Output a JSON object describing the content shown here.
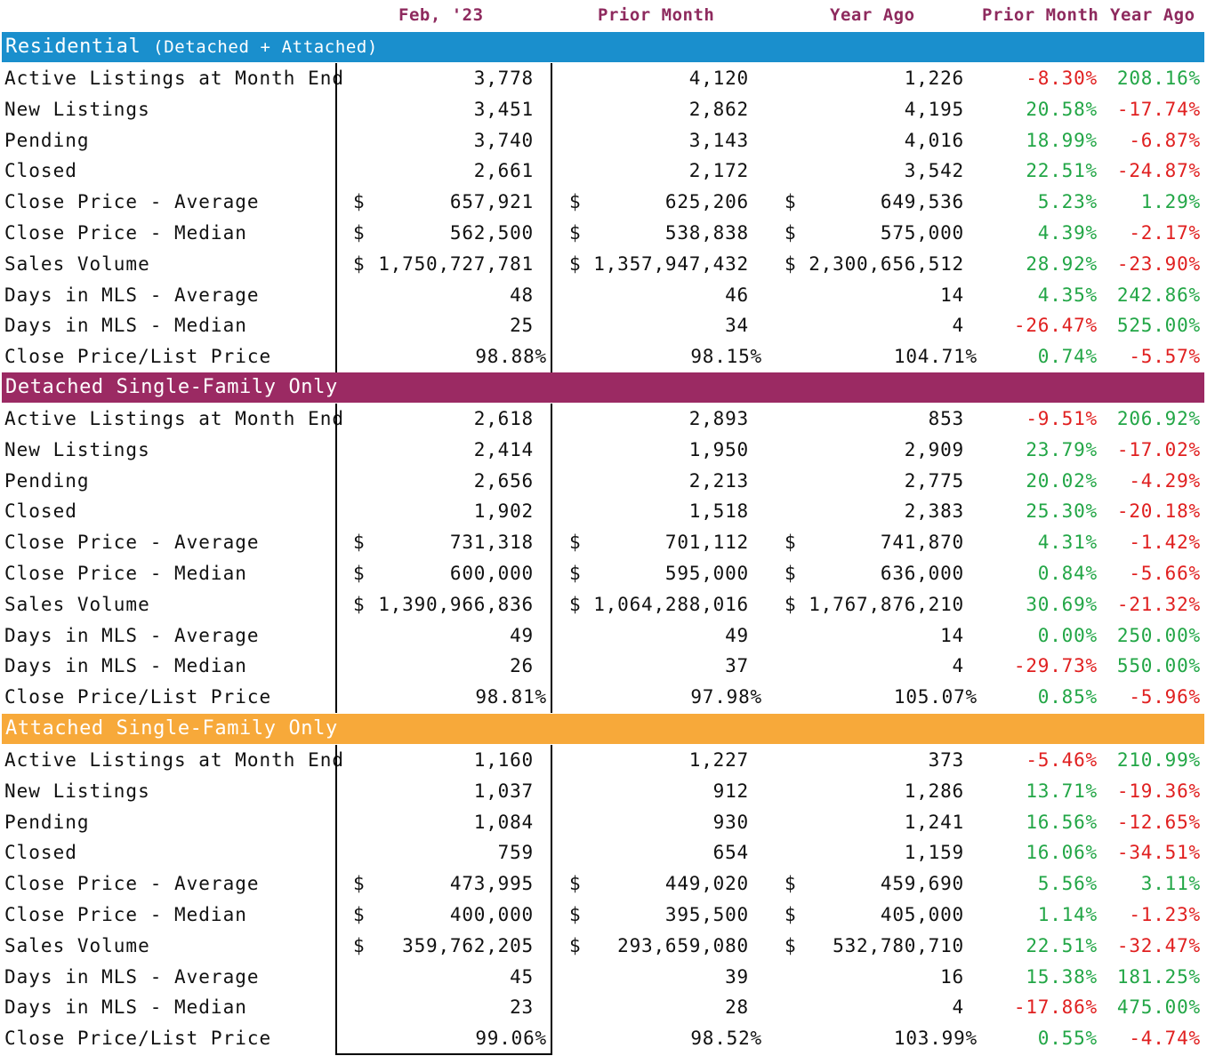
{
  "headers": [
    "Feb, '23",
    "Prior Month",
    "Year Ago",
    "Prior Month",
    "Year Ago"
  ],
  "colors": {
    "residential": "#1a8fcd",
    "detached": "#9b2a63",
    "attached": "#f7a93a",
    "positive": "#22a646",
    "negative": "#e02020",
    "header_text": "#8e2a5e"
  },
  "sections": [
    {
      "title": "Residential",
      "subtitle": "(Detached + Attached)",
      "color_key": "residential",
      "rows": [
        {
          "label": "Active Listings at Month End",
          "cur": "3,778",
          "prior": "4,120",
          "year": "1,226",
          "pm": "-8.30%",
          "ya": "208.16%"
        },
        {
          "label": "New Listings",
          "cur": "3,451",
          "prior": "2,862",
          "year": "4,195",
          "pm": "20.58%",
          "ya": "-17.74%"
        },
        {
          "label": "Pending",
          "cur": "3,740",
          "prior": "3,143",
          "year": "4,016",
          "pm": "18.99%",
          "ya": "-6.87%"
        },
        {
          "label": "Closed",
          "cur": "2,661",
          "prior": "2,172",
          "year": "3,542",
          "pm": "22.51%",
          "ya": "-24.87%"
        },
        {
          "label": "Close Price - Average",
          "dollar": "wide",
          "cur": "657,921",
          "prior": "625,206",
          "year": "649,536",
          "pm": "5.23%",
          "ya": "1.29%"
        },
        {
          "label": "Close Price - Median",
          "dollar": "wide",
          "cur": "562,500",
          "prior": "538,838",
          "year": "575,000",
          "pm": "4.39%",
          "ya": "-2.17%"
        },
        {
          "label": "Sales Volume",
          "dollar": "tight",
          "cur": "1,750,727,781",
          "prior": "1,357,947,432",
          "year": "2,300,656,512",
          "pm": "28.92%",
          "ya": "-23.90%"
        },
        {
          "label": "Days in MLS - Average",
          "cur": "48",
          "prior": "46",
          "year": "14",
          "pm": "4.35%",
          "ya": "242.86%"
        },
        {
          "label": "Days in MLS - Median",
          "cur": "25",
          "prior": "34",
          "year": "4",
          "pm": "-26.47%",
          "ya": "525.00%"
        },
        {
          "label": "Close Price/List Price",
          "pct": true,
          "cur": "98.88%",
          "prior": "98.15%",
          "year": "104.71%",
          "pm": "0.74%",
          "ya": "-5.57%"
        }
      ]
    },
    {
      "title": "Detached Single-Family Only",
      "subtitle": "",
      "color_key": "detached",
      "rows": [
        {
          "label": "Active Listings at Month End",
          "cur": "2,618",
          "prior": "2,893",
          "year": "853",
          "pm": "-9.51%",
          "ya": "206.92%"
        },
        {
          "label": "New Listings",
          "cur": "2,414",
          "prior": "1,950",
          "year": "2,909",
          "pm": "23.79%",
          "ya": "-17.02%"
        },
        {
          "label": "Pending",
          "cur": "2,656",
          "prior": "2,213",
          "year": "2,775",
          "pm": "20.02%",
          "ya": "-4.29%"
        },
        {
          "label": "Closed",
          "cur": "1,902",
          "prior": "1,518",
          "year": "2,383",
          "pm": "25.30%",
          "ya": "-20.18%"
        },
        {
          "label": "Close Price - Average",
          "dollar": "wide",
          "cur": "731,318",
          "prior": "701,112",
          "year": "741,870",
          "pm": "4.31%",
          "ya": "-1.42%"
        },
        {
          "label": "Close Price - Median",
          "dollar": "wide",
          "cur": "600,000",
          "prior": "595,000",
          "year": "636,000",
          "pm": "0.84%",
          "ya": "-5.66%"
        },
        {
          "label": "Sales Volume",
          "dollar": "tight",
          "cur": "1,390,966,836",
          "prior": "1,064,288,016",
          "year": "1,767,876,210",
          "pm": "30.69%",
          "ya": "-21.32%"
        },
        {
          "label": "Days in MLS - Average",
          "cur": "49",
          "prior": "49",
          "year": "14",
          "pm": "0.00%",
          "ya": "250.00%"
        },
        {
          "label": "Days in MLS - Median",
          "cur": "26",
          "prior": "37",
          "year": "4",
          "pm": "-29.73%",
          "ya": "550.00%"
        },
        {
          "label": "Close Price/List Price",
          "pct": true,
          "cur": "98.81%",
          "prior": "97.98%",
          "year": "105.07%",
          "pm": "0.85%",
          "ya": "-5.96%"
        }
      ]
    },
    {
      "title": "Attached Single-Family Only",
      "subtitle": "",
      "color_key": "attached",
      "rows": [
        {
          "label": "Active Listings at Month End",
          "cur": "1,160",
          "prior": "1,227",
          "year": "373",
          "pm": "-5.46%",
          "ya": "210.99%"
        },
        {
          "label": "New Listings",
          "cur": "1,037",
          "prior": "912",
          "year": "1,286",
          "pm": "13.71%",
          "ya": "-19.36%"
        },
        {
          "label": "Pending",
          "cur": "1,084",
          "prior": "930",
          "year": "1,241",
          "pm": "16.56%",
          "ya": "-12.65%"
        },
        {
          "label": "Closed",
          "cur": "759",
          "prior": "654",
          "year": "1,159",
          "pm": "16.06%",
          "ya": "-34.51%"
        },
        {
          "label": "Close Price - Average",
          "dollar": "wide",
          "cur": "473,995",
          "prior": "449,020",
          "year": "459,690",
          "pm": "5.56%",
          "ya": "3.11%"
        },
        {
          "label": "Close Price - Median",
          "dollar": "wide",
          "cur": "400,000",
          "prior": "395,500",
          "year": "405,000",
          "pm": "1.14%",
          "ya": "-1.23%"
        },
        {
          "label": "Sales Volume",
          "dollar": "wide",
          "cur": "359,762,205",
          "prior": "293,659,080",
          "year": "532,780,710",
          "pm": "22.51%",
          "ya": "-32.47%"
        },
        {
          "label": "Days in MLS - Average",
          "cur": "45",
          "prior": "39",
          "year": "16",
          "pm": "15.38%",
          "ya": "181.25%"
        },
        {
          "label": "Days in MLS - Median",
          "cur": "23",
          "prior": "28",
          "year": "4",
          "pm": "-17.86%",
          "ya": "475.00%"
        },
        {
          "label": "Close Price/List Price",
          "pct": true,
          "cur": "99.06%",
          "prior": "98.52%",
          "year": "103.99%",
          "pm": "0.55%",
          "ya": "-4.74%"
        }
      ]
    }
  ]
}
